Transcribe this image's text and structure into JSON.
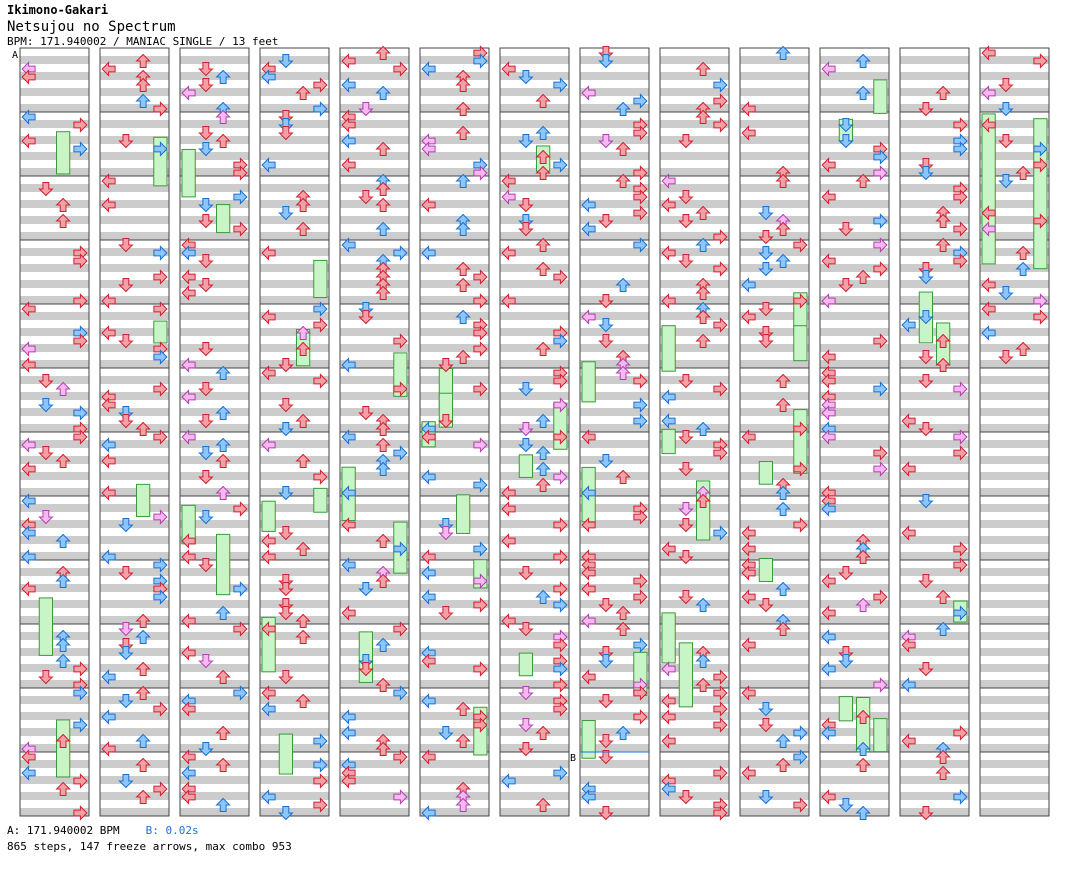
{
  "song": {
    "artist": "Ikimono-Gakari",
    "title": "Netsujou no Spectrum",
    "meta": "BPM: 171.940002 / MANIAC SINGLE / 13 feet"
  },
  "chart_data": {
    "type": "step-chart",
    "mode": "single",
    "difficulty": "MANIAC",
    "feet": 13,
    "bpm": 171.940002,
    "markers": [
      {
        "label": "A",
        "text": "A: 171.940002 BPM",
        "color": "#000000"
      },
      {
        "label": "B",
        "text": "B: 0.02s",
        "color": "#1e6fd6"
      }
    ],
    "stats": {
      "steps": 865,
      "freeze_arrows": 147,
      "max_combo": 953
    },
    "stats_text": "865 steps, 147 freeze arrows, max combo 953",
    "columns": 13,
    "measures_per_column": 12,
    "arrow_colors": {
      "quarter": "#f5a0a8",
      "eighth": "#8cc6ff",
      "sixteenth": "#f7b8f0",
      "freeze": "#c8f5c8"
    }
  }
}
